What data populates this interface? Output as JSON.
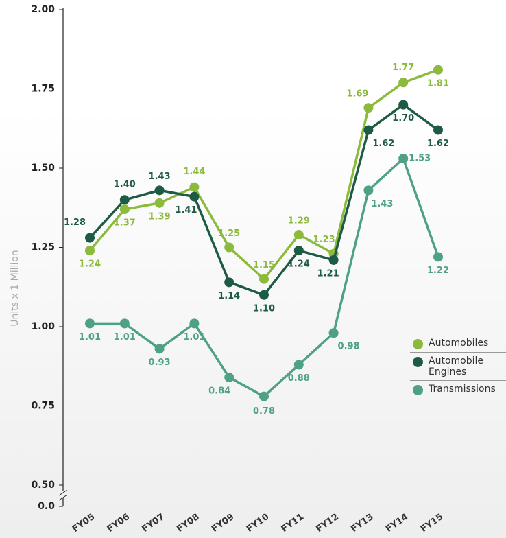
{
  "chart_data": {
    "type": "line",
    "y_axis_label": "Units x 1 Million",
    "categories": [
      "FY05",
      "FY06",
      "FY07",
      "FY08",
      "FY09",
      "FY10",
      "FY11",
      "FY12",
      "FY13",
      "FY14",
      "FY15"
    ],
    "series": [
      {
        "name": "Automobiles",
        "color": "#8cba3c",
        "values": [
          1.24,
          1.37,
          1.39,
          1.44,
          1.25,
          1.15,
          1.29,
          1.23,
          1.69,
          1.77,
          1.81
        ]
      },
      {
        "name": "Automobile Engines",
        "color": "#1e5b45",
        "values": [
          1.28,
          1.4,
          1.43,
          1.41,
          1.14,
          1.1,
          1.24,
          1.21,
          1.62,
          1.7,
          1.62
        ]
      },
      {
        "name": "Transmissions",
        "color": "#4ea283",
        "values": [
          1.01,
          1.01,
          0.93,
          1.01,
          0.84,
          0.78,
          0.88,
          0.98,
          1.43,
          1.53,
          1.22
        ]
      }
    ],
    "ylim": [
      0.5,
      2.0
    ],
    "yticks": [
      {
        "value": 0,
        "label": "0.0"
      },
      {
        "value": 0.5,
        "label": "0.50"
      },
      {
        "value": 0.75,
        "label": "0.75"
      },
      {
        "value": 1,
        "label": "1.00"
      },
      {
        "value": 1.25,
        "label": "1.25"
      },
      {
        "value": 1.5,
        "label": "1.50"
      },
      {
        "value": 1.75,
        "label": "1.75"
      },
      {
        "value": 2,
        "label": "2.00"
      }
    ],
    "y_axis_break": true,
    "legend": "right"
  }
}
